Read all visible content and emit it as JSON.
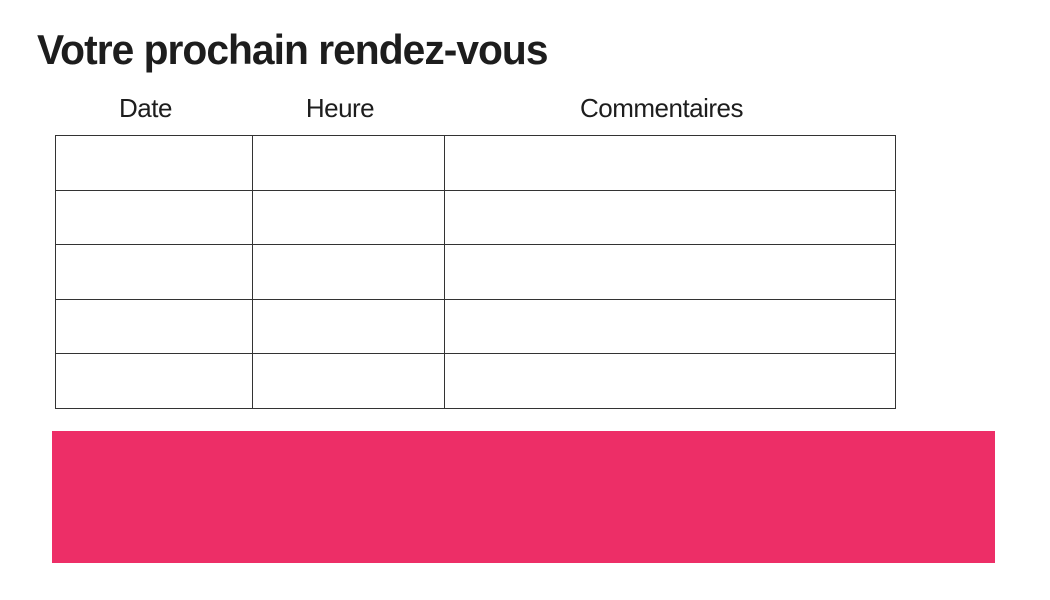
{
  "page": {
    "title": "Votre prochain rendez-vous"
  },
  "appointment_table": {
    "columns": [
      "Date",
      "Heure",
      "Commentaires"
    ],
    "rows": [
      [
        "",
        "",
        ""
      ],
      [
        "",
        "",
        ""
      ],
      [
        "",
        "",
        ""
      ],
      [
        "",
        "",
        ""
      ],
      [
        "",
        "",
        ""
      ]
    ],
    "border_color": "#333333"
  },
  "banner": {
    "color": "#ED2E67"
  }
}
